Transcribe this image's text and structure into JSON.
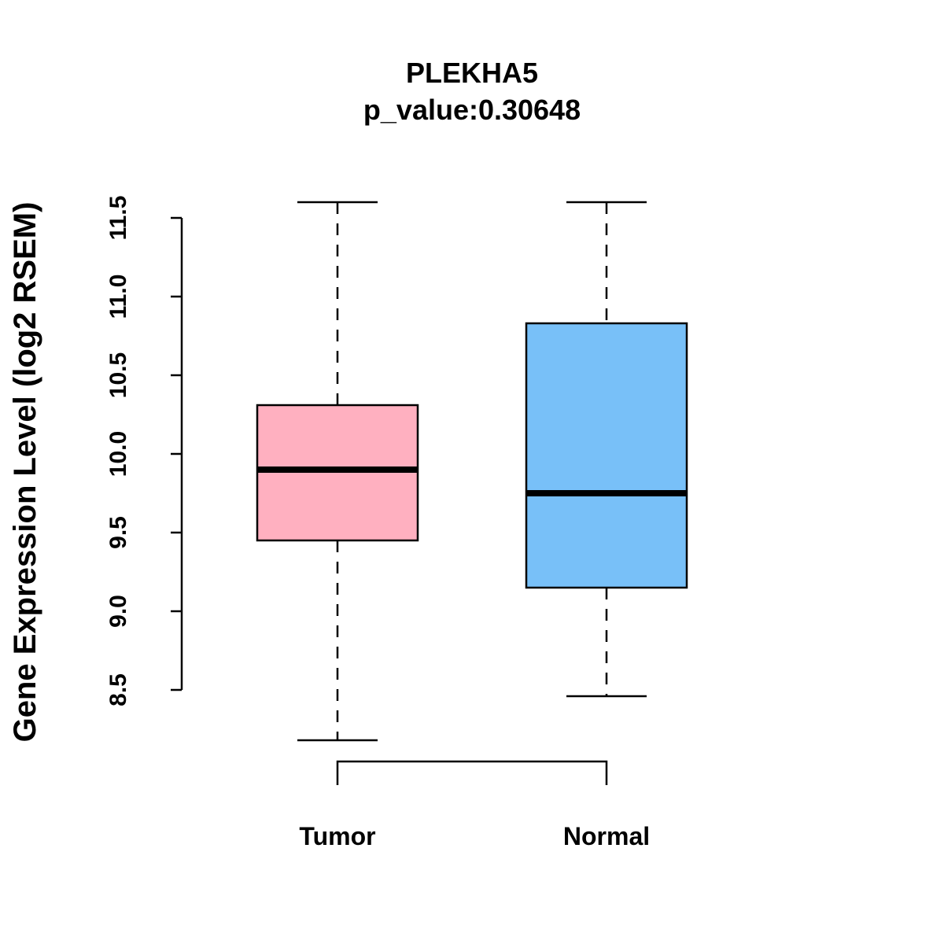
{
  "chart_data": {
    "type": "boxplot",
    "title": "PLEKHA5",
    "subtitle": "p_value:0.30648",
    "xlabel": "",
    "ylabel": "Gene Expression Level (log2 RSEM)",
    "ylim": [
      8.5,
      11.5
    ],
    "yticks": [
      {
        "value": 8.5,
        "label": "8.5"
      },
      {
        "value": 9.0,
        "label": "9.0"
      },
      {
        "value": 9.5,
        "label": "9.5"
      },
      {
        "value": 10.0,
        "label": "10.0"
      },
      {
        "value": 10.5,
        "label": "10.5"
      },
      {
        "value": 11.0,
        "label": "11.0"
      },
      {
        "value": 11.5,
        "label": "11.5"
      }
    ],
    "categories": [
      "Tumor",
      "Normal"
    ],
    "series": [
      {
        "name": "Tumor",
        "color": "#FFB0C0",
        "min": 8.18,
        "q1": 9.45,
        "median": 9.9,
        "q3": 10.31,
        "max": 11.6
      },
      {
        "name": "Normal",
        "color": "#78C0F8",
        "min": 8.46,
        "q1": 9.15,
        "median": 9.75,
        "q3": 10.83,
        "max": 11.6
      }
    ],
    "significance_bracket": {
      "from": "Tumor",
      "to": "Normal"
    },
    "grid": false,
    "legend": "none"
  }
}
